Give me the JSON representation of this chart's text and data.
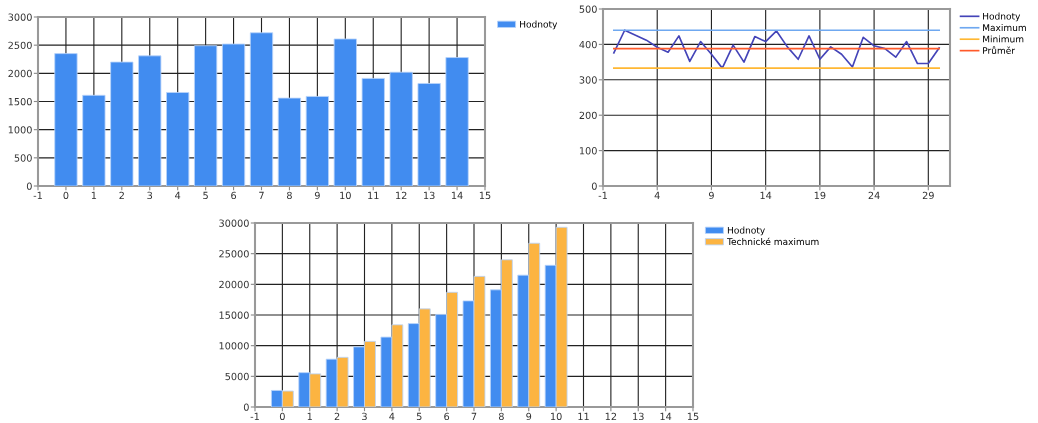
{
  "chart_data": [
    {
      "type": "bar",
      "x": [
        0,
        1,
        2,
        3,
        4,
        5,
        6,
        7,
        8,
        9,
        10,
        11,
        12,
        13,
        14
      ],
      "series": [
        {
          "name": "Hodnoty",
          "color": "#418cf0",
          "values": [
            2350,
            1610,
            2200,
            2310,
            1660,
            2490,
            2520,
            2720,
            1560,
            1590,
            2610,
            1910,
            2020,
            1820,
            2280
          ]
        }
      ],
      "xlim": [
        -1,
        15
      ],
      "xticks": [
        -1,
        0,
        1,
        2,
        3,
        4,
        5,
        6,
        7,
        8,
        9,
        10,
        11,
        12,
        13,
        14,
        15
      ],
      "ylim": [
        0,
        3000
      ],
      "yticks": [
        0,
        500,
        1000,
        1500,
        2000,
        2500,
        3000
      ],
      "grid": true,
      "legend": "right"
    },
    {
      "type": "line",
      "xlim": [
        -1,
        31
      ],
      "xticks": [
        -1,
        4,
        9,
        14,
        19,
        24,
        29
      ],
      "ylim": [
        0,
        500
      ],
      "yticks": [
        0,
        100,
        200,
        300,
        400,
        500
      ],
      "grid": true,
      "legend": "right",
      "series": [
        {
          "name": "Hodnoty",
          "color": "#4444b8",
          "x": [
            0,
            1,
            2,
            3,
            4,
            5,
            6,
            7,
            8,
            9,
            10,
            11,
            12,
            13,
            14,
            15,
            16,
            17,
            18,
            19,
            20,
            21,
            22,
            23,
            24,
            25,
            26,
            27,
            28,
            29,
            30
          ],
          "values": [
            376,
            440,
            426,
            412,
            392,
            378,
            424,
            352,
            408,
            372,
            333,
            398,
            350,
            422,
            408,
            438,
            393,
            358,
            424,
            358,
            393,
            372,
            336,
            420,
            396,
            388,
            364,
            408,
            346,
            346,
            390
          ]
        },
        {
          "name": "Maximum",
          "color": "#6fa8f0",
          "x": [
            0,
            30
          ],
          "values": [
            440,
            440
          ]
        },
        {
          "name": "Minimum",
          "color": "#ffb732",
          "x": [
            0,
            30
          ],
          "values": [
            333,
            333
          ]
        },
        {
          "name": "Průměr",
          "color": "#ff5a2a",
          "x": [
            0,
            30
          ],
          "values": [
            388,
            388
          ]
        }
      ]
    },
    {
      "type": "bar",
      "x": [
        0,
        1,
        2,
        3,
        4,
        5,
        6,
        7,
        8,
        9,
        10
      ],
      "xlim": [
        -1,
        15
      ],
      "xticks": [
        -1,
        0,
        1,
        2,
        3,
        4,
        5,
        6,
        7,
        8,
        9,
        10,
        11,
        12,
        13,
        14,
        15
      ],
      "ylim": [
        0,
        30000
      ],
      "yticks": [
        0,
        5000,
        10000,
        15000,
        20000,
        25000,
        30000
      ],
      "grid": true,
      "legend": "right",
      "series": [
        {
          "name": "Hodnoty",
          "color": "#418cf0",
          "values": [
            2700,
            5600,
            7800,
            9800,
            11400,
            13600,
            15100,
            17300,
            19100,
            21500,
            23100
          ]
        },
        {
          "name": "Technické maximum",
          "color": "#fcb441",
          "values": [
            2600,
            5400,
            8100,
            10700,
            13400,
            16000,
            18700,
            21300,
            24000,
            26700,
            29300
          ]
        }
      ]
    }
  ]
}
